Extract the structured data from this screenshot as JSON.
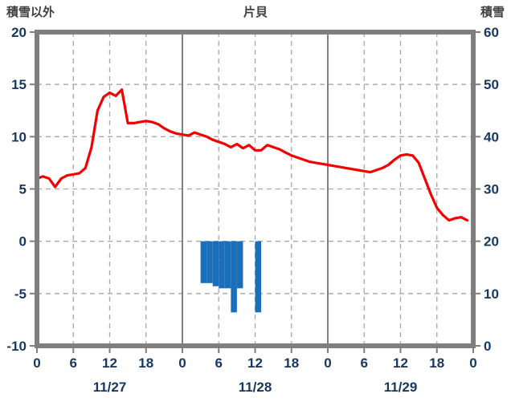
{
  "chart_data": {
    "type": "line",
    "title": "片貝",
    "left_axis": {
      "label": "積雪以外",
      "min": -10,
      "max": 20,
      "ticks": [
        20,
        15,
        10,
        5,
        0,
        -5,
        -10
      ]
    },
    "right_axis": {
      "label": "積雪",
      "min": 0,
      "max": 60,
      "ticks": [
        60,
        50,
        40,
        30,
        20,
        10,
        0
      ]
    },
    "x_axis": {
      "min_hour": 0,
      "max_hour": 72,
      "tick_step_hours": 6,
      "hour_tick_labels": [
        "0",
        "6",
        "12",
        "18",
        "0",
        "6",
        "12",
        "18",
        "0",
        "6",
        "12",
        "18",
        "0"
      ],
      "date_labels": [
        "11/27",
        "11/28",
        "11/29"
      ],
      "date_label_center_hours": [
        12,
        36,
        60
      ]
    },
    "grid": {
      "h_dashed_values": [
        15,
        10,
        5,
        0,
        -5
      ],
      "v_dashed_hours": [
        6,
        12,
        18,
        30,
        36,
        42,
        54,
        60,
        66
      ],
      "v_solid_hours": [
        24,
        48
      ]
    },
    "series": [
      {
        "name": "temperature",
        "type": "line",
        "axis": "left",
        "color": "#f40000",
        "values": [
          6.0,
          6.2,
          6.0,
          5.2,
          6.0,
          6.3,
          6.4,
          6.5,
          7.0,
          9.0,
          12.5,
          13.8,
          14.2,
          13.9,
          14.5,
          11.3,
          11.3,
          11.4,
          11.5,
          11.4,
          11.2,
          10.8,
          10.5,
          10.3,
          10.2,
          10.1,
          10.4,
          10.2,
          10.0,
          9.7,
          9.5,
          9.3,
          9.0,
          9.3,
          8.9,
          9.2,
          8.7,
          8.7,
          9.2,
          9.0,
          8.8,
          8.5,
          8.2,
          8.0,
          7.8,
          7.6,
          7.5,
          7.4,
          7.3,
          7.2,
          7.1,
          7.0,
          6.9,
          6.8,
          6.7,
          6.6,
          6.8,
          7.0,
          7.3,
          7.8,
          8.2,
          8.3,
          8.2,
          7.5,
          6.0,
          4.5,
          3.2,
          2.5,
          2.0,
          2.2,
          2.3,
          2.0
        ]
      },
      {
        "name": "precipitation-bars",
        "type": "bar",
        "axis": "left",
        "color": "#1b6fba",
        "points": [
          {
            "hour": 27,
            "value": -4.0
          },
          {
            "hour": 28,
            "value": -4.0
          },
          {
            "hour": 29,
            "value": -4.3
          },
          {
            "hour": 30,
            "value": -4.5
          },
          {
            "hour": 31,
            "value": -4.5
          },
          {
            "hour": 32,
            "value": -6.8
          },
          {
            "hour": 33,
            "value": -4.5
          },
          {
            "hour": 36,
            "value": -6.8
          }
        ]
      },
      {
        "name": "snow-depth",
        "type": "line",
        "axis": "right",
        "color": "#7030a0",
        "constant_value": 0
      }
    ],
    "style": {
      "border_color": "#7f7f7f",
      "grid_color": "#a6a6a6",
      "solid_grid_color": "#808080",
      "tick_label_color": "#17375e",
      "header_label_color": "#404040",
      "background": "#ffffff"
    }
  }
}
